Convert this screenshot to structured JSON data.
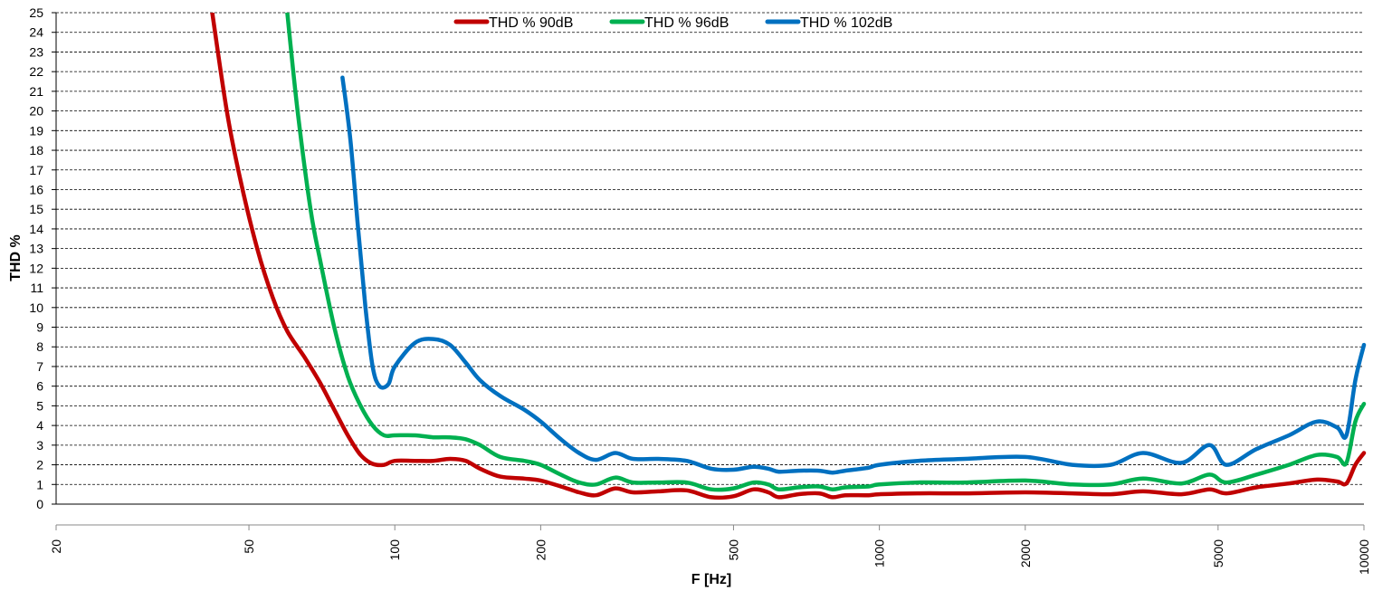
{
  "chart_data": {
    "type": "line",
    "title": "",
    "xlabel": "F [Hz]",
    "ylabel": "THD %",
    "x_scale": "log",
    "xlim": [
      20,
      10000
    ],
    "ylim": [
      0,
      25
    ],
    "x_tick_labels": [
      "20",
      "50",
      "100",
      "200",
      "500",
      "1000",
      "2000",
      "5000",
      "10000"
    ],
    "x_tick_values": [
      20,
      50,
      100,
      200,
      500,
      1000,
      2000,
      5000,
      10000
    ],
    "y_ticks": [
      0,
      1,
      2,
      3,
      4,
      5,
      6,
      7,
      8,
      9,
      10,
      11,
      12,
      13,
      14,
      15,
      16,
      17,
      18,
      19,
      20,
      21,
      22,
      23,
      24,
      25
    ],
    "grid": "horizontal-dashed",
    "legend_position": "top",
    "series": [
      {
        "name": "THD % 90dB",
        "color": "#C00000",
        "points": [
          [
            42,
            25
          ],
          [
            45,
            20
          ],
          [
            48,
            16.5
          ],
          [
            52,
            13
          ],
          [
            56,
            10.5
          ],
          [
            60,
            8.8
          ],
          [
            65,
            7.5
          ],
          [
            70,
            6.2
          ],
          [
            75,
            4.8
          ],
          [
            80,
            3.5
          ],
          [
            85,
            2.5
          ],
          [
            90,
            2.05
          ],
          [
            95,
            2.0
          ],
          [
            100,
            2.2
          ],
          [
            110,
            2.2
          ],
          [
            120,
            2.2
          ],
          [
            130,
            2.3
          ],
          [
            140,
            2.2
          ],
          [
            150,
            1.8
          ],
          [
            165,
            1.4
          ],
          [
            185,
            1.3
          ],
          [
            200,
            1.2
          ],
          [
            220,
            0.9
          ],
          [
            240,
            0.6
          ],
          [
            260,
            0.45
          ],
          [
            285,
            0.8
          ],
          [
            310,
            0.6
          ],
          [
            350,
            0.65
          ],
          [
            400,
            0.7
          ],
          [
            450,
            0.35
          ],
          [
            500,
            0.4
          ],
          [
            550,
            0.75
          ],
          [
            590,
            0.6
          ],
          [
            620,
            0.35
          ],
          [
            680,
            0.5
          ],
          [
            750,
            0.55
          ],
          [
            800,
            0.35
          ],
          [
            850,
            0.45
          ],
          [
            950,
            0.45
          ],
          [
            1000,
            0.5
          ],
          [
            1200,
            0.55
          ],
          [
            1500,
            0.55
          ],
          [
            2000,
            0.6
          ],
          [
            2500,
            0.55
          ],
          [
            3000,
            0.5
          ],
          [
            3500,
            0.65
          ],
          [
            4200,
            0.5
          ],
          [
            4800,
            0.75
          ],
          [
            5200,
            0.55
          ],
          [
            6000,
            0.85
          ],
          [
            7000,
            1.05
          ],
          [
            8000,
            1.25
          ],
          [
            8800,
            1.15
          ],
          [
            9200,
            1.05
          ],
          [
            9600,
            2.0
          ],
          [
            10000,
            2.6
          ]
        ]
      },
      {
        "name": "THD % 96dB",
        "color": "#00B050",
        "points": [
          [
            60,
            25
          ],
          [
            63,
            20
          ],
          [
            67,
            15
          ],
          [
            70,
            12.5
          ],
          [
            75,
            9
          ],
          [
            80,
            6.5
          ],
          [
            85,
            5
          ],
          [
            90,
            4
          ],
          [
            95,
            3.5
          ],
          [
            100,
            3.5
          ],
          [
            110,
            3.5
          ],
          [
            120,
            3.4
          ],
          [
            130,
            3.4
          ],
          [
            140,
            3.3
          ],
          [
            150,
            3.0
          ],
          [
            165,
            2.4
          ],
          [
            185,
            2.2
          ],
          [
            200,
            2.0
          ],
          [
            220,
            1.5
          ],
          [
            240,
            1.1
          ],
          [
            260,
            1.0
          ],
          [
            285,
            1.35
          ],
          [
            310,
            1.1
          ],
          [
            350,
            1.1
          ],
          [
            400,
            1.1
          ],
          [
            450,
            0.75
          ],
          [
            500,
            0.8
          ],
          [
            550,
            1.1
          ],
          [
            590,
            1.0
          ],
          [
            620,
            0.75
          ],
          [
            680,
            0.85
          ],
          [
            750,
            0.9
          ],
          [
            800,
            0.75
          ],
          [
            850,
            0.85
          ],
          [
            950,
            0.9
          ],
          [
            1000,
            1.0
          ],
          [
            1200,
            1.1
          ],
          [
            1500,
            1.1
          ],
          [
            2000,
            1.2
          ],
          [
            2500,
            1.0
          ],
          [
            3000,
            1.0
          ],
          [
            3500,
            1.3
          ],
          [
            4200,
            1.05
          ],
          [
            4800,
            1.5
          ],
          [
            5200,
            1.1
          ],
          [
            6000,
            1.5
          ],
          [
            7000,
            2.0
          ],
          [
            8000,
            2.5
          ],
          [
            8800,
            2.4
          ],
          [
            9200,
            2.1
          ],
          [
            9600,
            4.2
          ],
          [
            10000,
            5.1
          ]
        ]
      },
      {
        "name": "THD % 102dB",
        "color": "#0070C0",
        "points": [
          [
            78,
            21.7
          ],
          [
            81,
            18.5
          ],
          [
            84,
            14
          ],
          [
            87,
            10
          ],
          [
            90,
            7
          ],
          [
            93,
            6.0
          ],
          [
            97,
            6.1
          ],
          [
            100,
            7.0
          ],
          [
            110,
            8.2
          ],
          [
            120,
            8.4
          ],
          [
            130,
            8.1
          ],
          [
            140,
            7.2
          ],
          [
            150,
            6.3
          ],
          [
            165,
            5.5
          ],
          [
            185,
            4.8
          ],
          [
            200,
            4.2
          ],
          [
            220,
            3.3
          ],
          [
            240,
            2.6
          ],
          [
            260,
            2.25
          ],
          [
            285,
            2.6
          ],
          [
            310,
            2.3
          ],
          [
            350,
            2.3
          ],
          [
            400,
            2.2
          ],
          [
            450,
            1.8
          ],
          [
            500,
            1.75
          ],
          [
            550,
            1.9
          ],
          [
            590,
            1.8
          ],
          [
            620,
            1.65
          ],
          [
            680,
            1.7
          ],
          [
            750,
            1.7
          ],
          [
            800,
            1.6
          ],
          [
            850,
            1.7
          ],
          [
            950,
            1.85
          ],
          [
            1000,
            2.0
          ],
          [
            1200,
            2.2
          ],
          [
            1500,
            2.3
          ],
          [
            2000,
            2.4
          ],
          [
            2500,
            2.0
          ],
          [
            3000,
            2.0
          ],
          [
            3500,
            2.6
          ],
          [
            4200,
            2.1
          ],
          [
            4800,
            3.0
          ],
          [
            5200,
            2.0
          ],
          [
            6000,
            2.8
          ],
          [
            7000,
            3.5
          ],
          [
            8000,
            4.2
          ],
          [
            8800,
            3.9
          ],
          [
            9200,
            3.5
          ],
          [
            9600,
            6.3
          ],
          [
            10000,
            8.1
          ]
        ]
      }
    ]
  }
}
